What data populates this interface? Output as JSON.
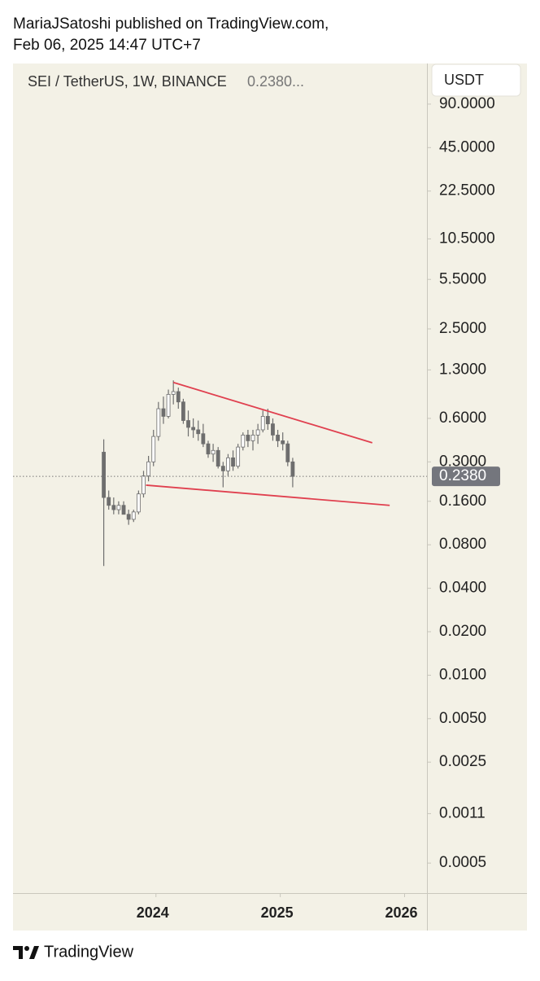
{
  "header": {
    "line1": "MariaJSatoshi published on TradingView.com,",
    "line2": "Feb 06, 2025 14:47 UTC+7"
  },
  "footer": {
    "brand": "TradingView"
  },
  "chart_data": {
    "type": "candlestick",
    "title": "SEI / TetherUS, 1W, BINANCE",
    "legend_value": "0.2380...",
    "currency": "USDT",
    "log_scale": true,
    "up_color": "#ffffff",
    "down_color": "#6e6e6e",
    "wick_color": "#6e6e6e",
    "trendline_color": "#e0404f",
    "x": [
      2023.58,
      2023.62,
      2023.66,
      2023.7,
      2023.74,
      2023.78,
      2023.82,
      2023.86,
      2023.9,
      2023.94,
      2023.98,
      2024.02,
      2024.06,
      2024.1,
      2024.14,
      2024.18,
      2024.22,
      2024.26,
      2024.3,
      2024.34,
      2024.38,
      2024.42,
      2024.46,
      2024.5,
      2024.54,
      2024.58,
      2024.62,
      2024.66,
      2024.7,
      2024.74,
      2024.78,
      2024.82,
      2024.86,
      2024.9,
      2024.94,
      2024.98,
      2025.02,
      2025.06,
      2025.1
    ],
    "open": [
      0.35,
      0.17,
      0.15,
      0.14,
      0.15,
      0.13,
      0.12,
      0.135,
      0.18,
      0.24,
      0.3,
      0.45,
      0.7,
      0.62,
      0.88,
      0.92,
      0.78,
      0.58,
      0.52,
      0.5,
      0.47,
      0.4,
      0.34,
      0.36,
      0.28,
      0.26,
      0.32,
      0.28,
      0.38,
      0.46,
      0.42,
      0.46,
      0.5,
      0.62,
      0.55,
      0.46,
      0.42,
      0.4,
      0.3
    ],
    "high": [
      0.43,
      0.19,
      0.17,
      0.16,
      0.16,
      0.14,
      0.14,
      0.19,
      0.26,
      0.33,
      0.5,
      0.78,
      0.85,
      0.95,
      1.1,
      0.98,
      0.82,
      0.68,
      0.6,
      0.58,
      0.55,
      0.42,
      0.4,
      0.38,
      0.3,
      0.34,
      0.36,
      0.4,
      0.48,
      0.5,
      0.5,
      0.55,
      0.68,
      0.7,
      0.6,
      0.5,
      0.48,
      0.42,
      0.32
    ],
    "low": [
      0.057,
      0.14,
      0.13,
      0.13,
      0.13,
      0.11,
      0.115,
      0.13,
      0.17,
      0.22,
      0.28,
      0.42,
      0.55,
      0.6,
      0.75,
      0.7,
      0.55,
      0.45,
      0.44,
      0.42,
      0.38,
      0.32,
      0.3,
      0.27,
      0.2,
      0.24,
      0.26,
      0.27,
      0.36,
      0.38,
      0.36,
      0.4,
      0.48,
      0.5,
      0.42,
      0.38,
      0.36,
      0.28,
      0.2
    ],
    "close": [
      0.17,
      0.15,
      0.14,
      0.15,
      0.13,
      0.12,
      0.135,
      0.18,
      0.24,
      0.3,
      0.45,
      0.7,
      0.62,
      0.88,
      0.92,
      0.78,
      0.58,
      0.52,
      0.5,
      0.47,
      0.4,
      0.34,
      0.36,
      0.28,
      0.26,
      0.32,
      0.28,
      0.38,
      0.46,
      0.42,
      0.46,
      0.5,
      0.62,
      0.55,
      0.46,
      0.42,
      0.4,
      0.3,
      0.238
    ],
    "trendlines": [
      {
        "x": [
          2024.14,
          2025.74
        ],
        "y": [
          1.064,
          0.407
        ]
      },
      {
        "x": [
          2023.92,
          2025.88
        ],
        "y": [
          0.207,
          0.15
        ]
      }
    ],
    "last_price": {
      "value": 0.238,
      "label": "0.2380"
    },
    "xlim": [
      2022.85,
      2026.18
    ],
    "xticks": [
      2024,
      2025,
      2026
    ],
    "ylim": [
      0.00031,
      172
    ],
    "yticks": [
      {
        "value": 90,
        "label": "90.0000"
      },
      {
        "value": 45,
        "label": "45.0000"
      },
      {
        "value": 22.5,
        "label": "22.5000"
      },
      {
        "value": 10.5,
        "label": "10.5000"
      },
      {
        "value": 5.5,
        "label": "5.5000"
      },
      {
        "value": 2.5,
        "label": "2.5000"
      },
      {
        "value": 1.3,
        "label": "1.3000"
      },
      {
        "value": 0.6,
        "label": "0.6000"
      },
      {
        "value": 0.3,
        "label": "0.3000"
      },
      {
        "value": 0.16,
        "label": "0.1600"
      },
      {
        "value": 0.08,
        "label": "0.0800"
      },
      {
        "value": 0.04,
        "label": "0.0400"
      },
      {
        "value": 0.02,
        "label": "0.0200"
      },
      {
        "value": 0.01,
        "label": "0.0100"
      },
      {
        "value": 0.005,
        "label": "0.0050"
      },
      {
        "value": 0.0025,
        "label": "0.0025"
      },
      {
        "value": 0.0011,
        "label": "0.0011"
      },
      {
        "value": 0.0005,
        "label": "0.0005"
      }
    ]
  }
}
